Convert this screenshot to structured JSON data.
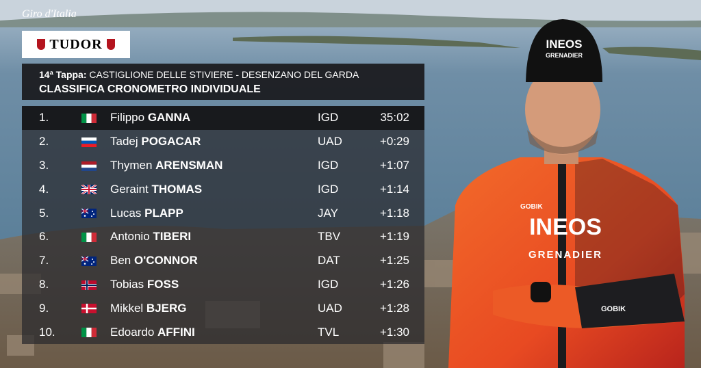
{
  "logo": {
    "broadcast": "Giro d'Italia",
    "sponsor": "TUDOR"
  },
  "header": {
    "stage_label": "14ª Tappa:",
    "stage_route": "CASTIGLIONE DELLE STIVIERE - DESENZANO DEL GARDA",
    "title": "CLASSIFICA CRONOMETRO INDIVIDUALE"
  },
  "table": {
    "rows": [
      [
        "1.",
        "Filippo",
        "GANNA",
        "IGD",
        "35:02"
      ],
      [
        "2.",
        "Tadej",
        "POGACAR",
        "UAD",
        "+0:29"
      ],
      [
        "3.",
        "Thymen",
        "ARENSMAN",
        "IGD",
        "+1:07"
      ],
      [
        "4.",
        "Geraint",
        "THOMAS",
        "IGD",
        "+1:14"
      ],
      [
        "5.",
        "Lucas",
        "PLAPP",
        "JAY",
        "+1:18"
      ],
      [
        "6.",
        "Antonio",
        "TIBERI",
        "TBV",
        "+1:19"
      ],
      [
        "7.",
        "Ben",
        "O'CONNOR",
        "DAT",
        "+1:25"
      ],
      [
        "8.",
        "Tobias",
        "FOSS",
        "IGD",
        "+1:26"
      ],
      [
        "9.",
        "Mikkel",
        "BJERG",
        "UAD",
        "+1:28"
      ],
      [
        "10.",
        "Edoardo",
        "AFFINI",
        "TVL",
        "+1:30"
      ]
    ]
  },
  "photo": {
    "cap_top": "INEOS",
    "cap_bottom": "GRENADIER",
    "chest_top": "INEOS",
    "chest_bottom": "GRENADIER",
    "collar": "GOBIK",
    "sleeve": "GOBIK"
  }
}
